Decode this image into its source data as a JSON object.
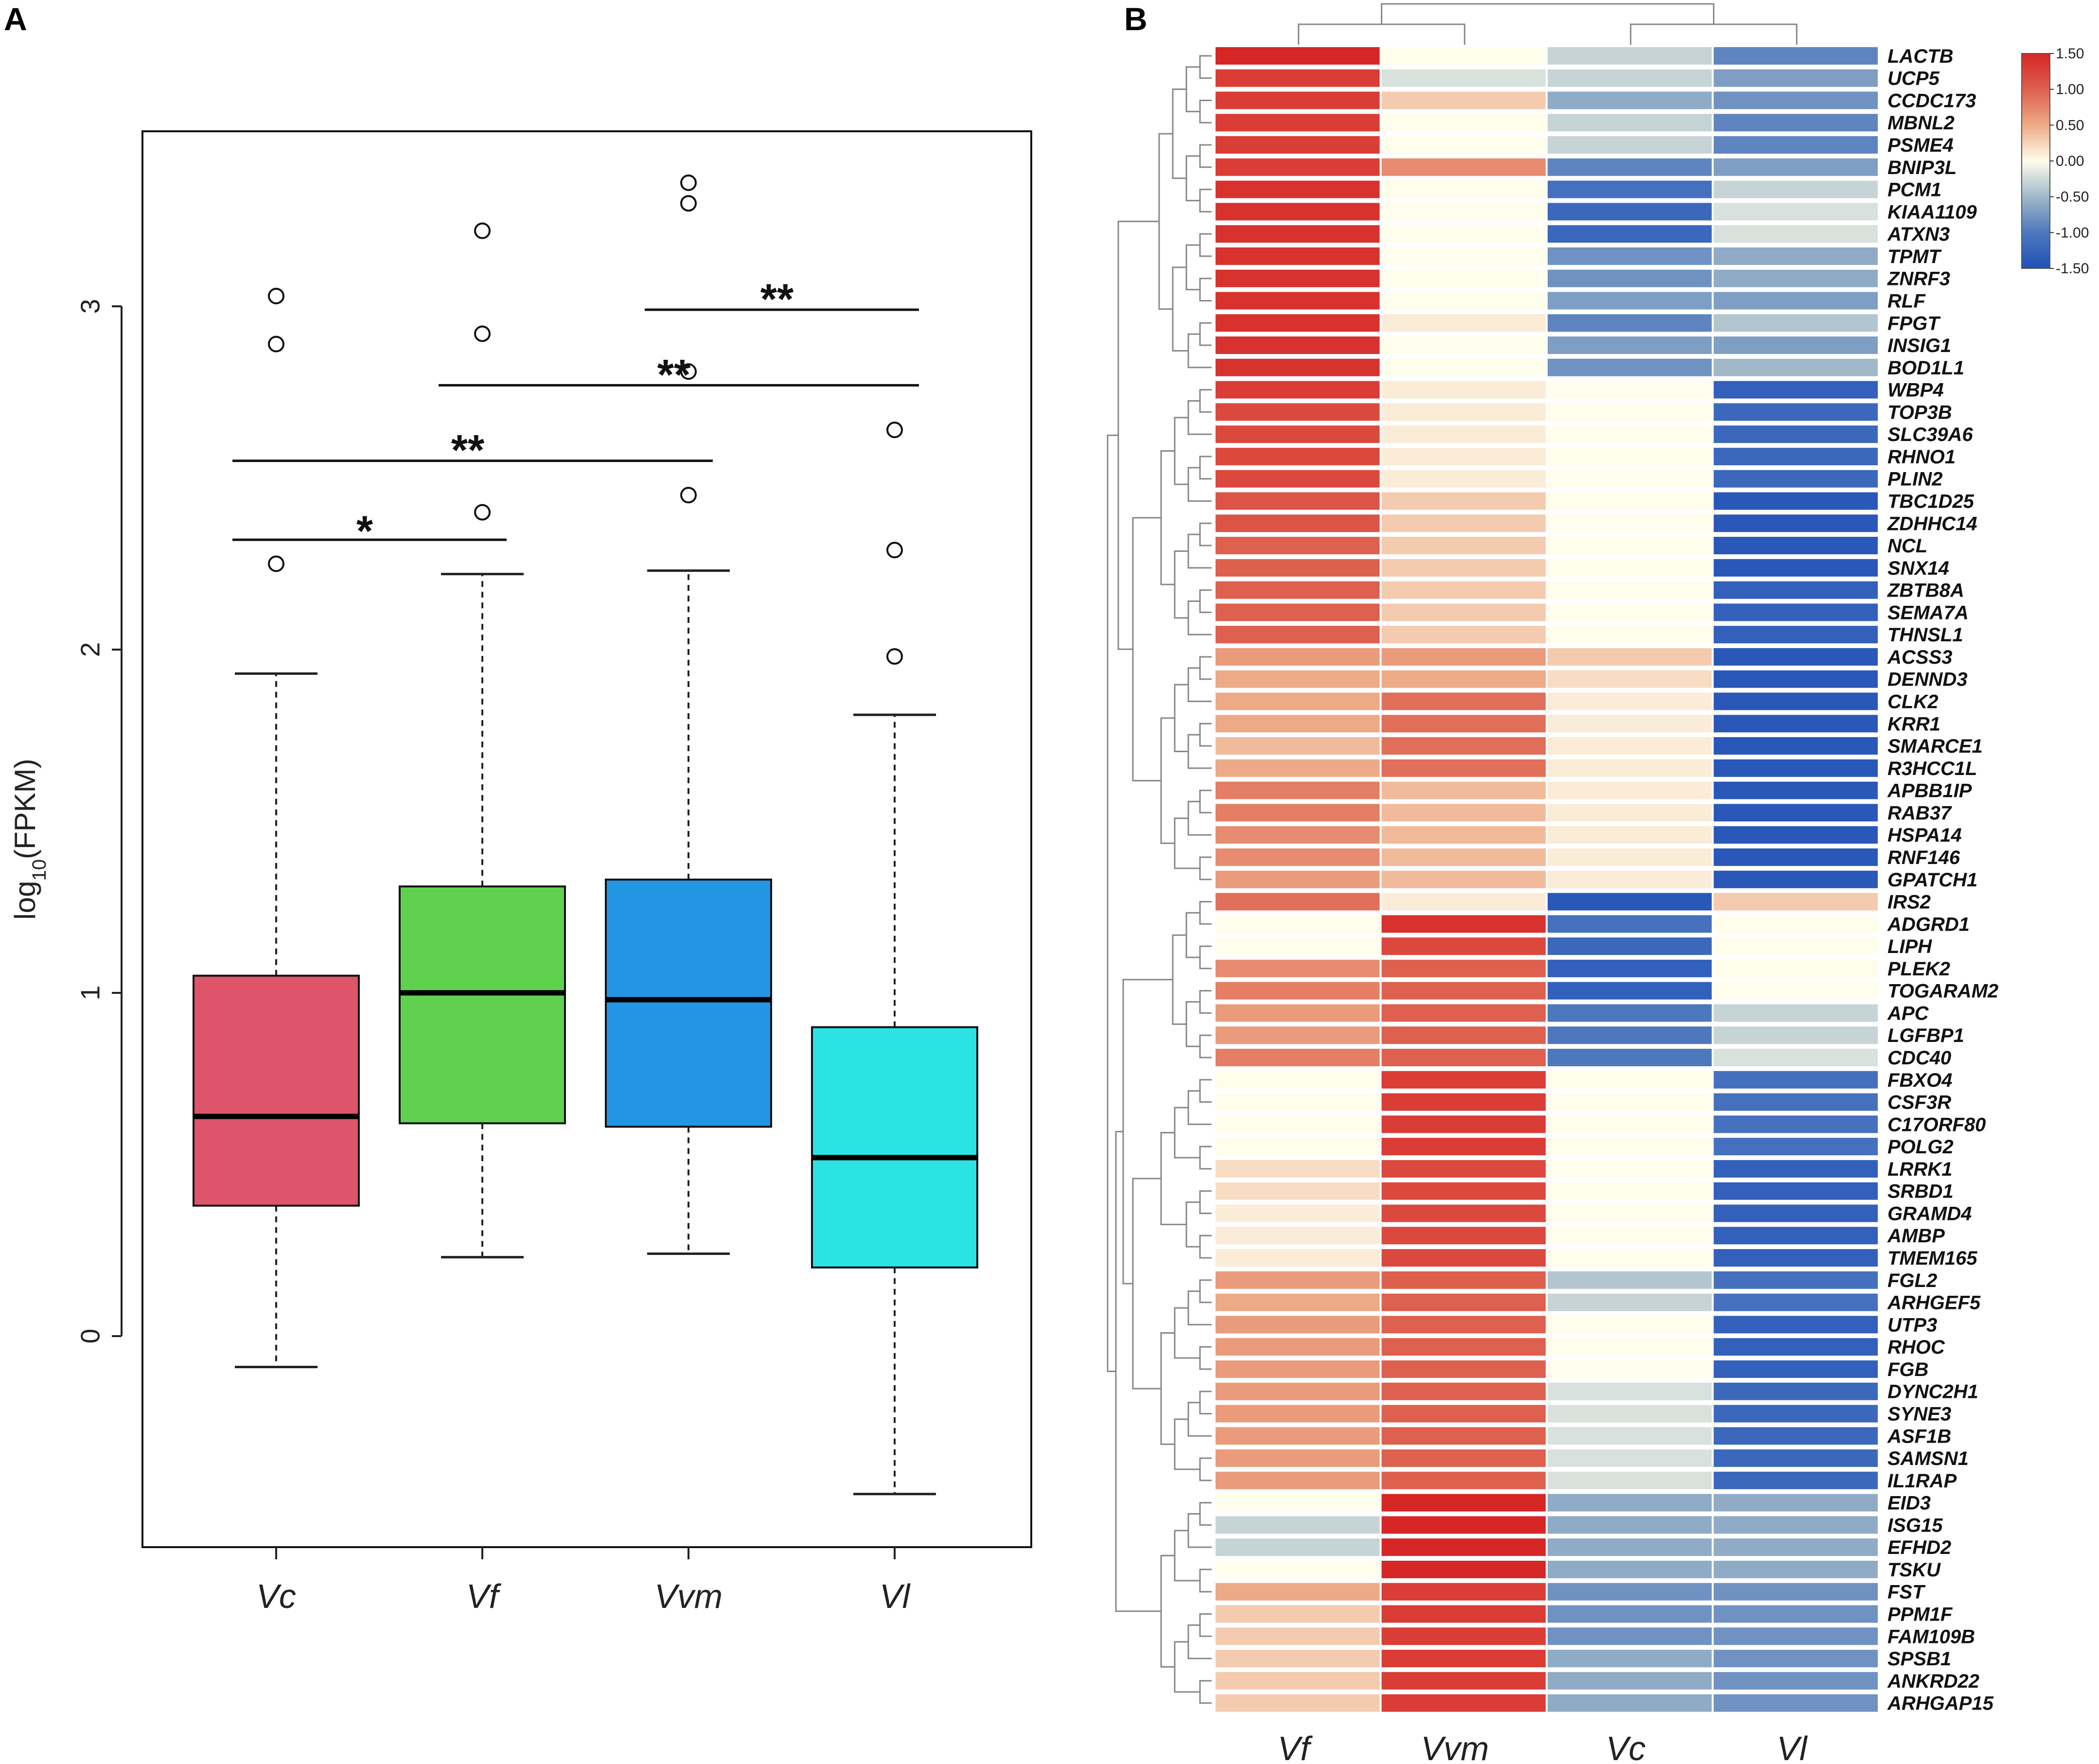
{
  "panel_labels": {
    "a": "A",
    "b": "B"
  },
  "chart_data": [
    {
      "type": "boxplot",
      "panel": "A",
      "ylabel": "log10(FPKM)",
      "ylabel_parts": {
        "log": "log",
        "sub": "10",
        "rest": "(FPKM)"
      },
      "ylim": [
        -0.6,
        3.5
      ],
      "yticks": [
        0,
        1,
        2,
        3
      ],
      "ytick_labels": [
        "0",
        "1",
        "2",
        "3"
      ],
      "categories": [
        "Vc",
        "Vf",
        "Vvm",
        "Vl"
      ],
      "colors": [
        "#dd546b",
        "#5fd14f",
        "#2295e3",
        "#2ce3e3"
      ],
      "boxes": [
        {
          "name": "Vc",
          "q1": 0.38,
          "median": 0.64,
          "q3": 1.05,
          "whisker_low": -0.09,
          "whisker_high": 1.93,
          "outliers": [
            2.25,
            2.89,
            3.03
          ]
        },
        {
          "name": "Vf",
          "q1": 0.62,
          "median": 1.0,
          "q3": 1.31,
          "whisker_low": 0.23,
          "whisker_high": 2.22,
          "outliers": [
            2.4,
            2.92,
            3.22
          ]
        },
        {
          "name": "Vvm",
          "q1": 0.61,
          "median": 0.98,
          "q3": 1.33,
          "whisker_low": 0.24,
          "whisker_high": 2.23,
          "outliers": [
            2.45,
            2.81,
            3.3,
            3.36
          ]
        },
        {
          "name": "Vl",
          "q1": 0.2,
          "median": 0.52,
          "q3": 0.9,
          "whisker_low": -0.46,
          "whisker_high": 1.81,
          "outliers": [
            1.98,
            2.29,
            2.64
          ]
        }
      ],
      "significance": [
        {
          "from": "Vc",
          "to": "Vf",
          "label": "*",
          "y": 2.32
        },
        {
          "from": "Vc",
          "to": "Vvm",
          "label": "**",
          "y": 2.55
        },
        {
          "from": "Vf",
          "to": "Vl",
          "label": "**",
          "y": 2.77
        },
        {
          "from": "Vvm",
          "to": "Vl",
          "label": "**",
          "y": 2.99
        }
      ]
    },
    {
      "type": "heatmap",
      "panel": "B",
      "columns": [
        "Vf",
        "Vvm",
        "Vc",
        "Vl"
      ],
      "colorbar": {
        "min": -1.5,
        "max": 1.5,
        "ticks": [
          "1.50",
          "1.00",
          "0.50",
          "0.00",
          "-0.50",
          "-1.00",
          "-1.50"
        ]
      },
      "genes": [
        "LACTB",
        "UCP5",
        "CCDC173",
        "MBNL2",
        "PSME4",
        "BNIP3L",
        "PCM1",
        "KIAA1109",
        "ATXN3",
        "TPMT",
        "ZNRF3",
        "RLF",
        "FPGT",
        "INSIG1",
        "BOD1L1",
        "WBP4",
        "TOP3B",
        "SLC39A6",
        "RHNO1",
        "PLIN2",
        "TBC1D25",
        "ZDHHC14",
        "NCL",
        "SNX14",
        "ZBTB8A",
        "SEMA7A",
        "THNSL1",
        "ACSS3",
        "DENND3",
        "CLK2",
        "KRR1",
        "SMARCE1",
        "R3HCC1L",
        "APBB1IP",
        "RAB37",
        "HSPA14",
        "RNF146",
        "GPATCH1",
        "IRS2",
        "ADGRD1",
        "LIPH",
        "PLEK2",
        "TOGARAM2",
        "APC",
        "LGFBP1",
        "CDC40",
        "FBXO4",
        "CSF3R",
        "C17ORF80",
        "POLG2",
        "LRRK1",
        "SRBD1",
        "GRAMD4",
        "AMBP",
        "TMEM165",
        "FGL2",
        "ARHGEF5",
        "UTP3",
        "RHOC",
        "FGB",
        "DYNC2H1",
        "SYNE3",
        "ASF1B",
        "SAMSN1",
        "IL1RAP",
        "EID3",
        "ISG15",
        "EFHD2",
        "TSKU",
        "FST",
        "PPM1F",
        "FAM109B",
        "SPSB1",
        "ANKRD22",
        "ARHGAP15"
      ],
      "values": [
        [
          1.5,
          0.0,
          -0.3,
          -0.9
        ],
        [
          1.3,
          -0.2,
          -0.3,
          -0.7
        ],
        [
          1.3,
          0.3,
          -0.6,
          -0.8
        ],
        [
          1.3,
          0.0,
          -0.3,
          -0.9
        ],
        [
          1.3,
          0.0,
          -0.3,
          -0.9
        ],
        [
          1.3,
          0.7,
          -0.9,
          -0.7
        ],
        [
          1.4,
          0.0,
          -1.1,
          -0.3
        ],
        [
          1.4,
          0.0,
          -1.2,
          -0.2
        ],
        [
          1.4,
          0.0,
          -1.2,
          -0.2
        ],
        [
          1.4,
          0.0,
          -0.8,
          -0.6
        ],
        [
          1.4,
          0.0,
          -0.8,
          -0.6
        ],
        [
          1.4,
          0.0,
          -0.7,
          -0.7
        ],
        [
          1.4,
          0.1,
          -0.9,
          -0.4
        ],
        [
          1.4,
          0.0,
          -0.7,
          -0.7
        ],
        [
          1.4,
          0.0,
          -0.8,
          -0.5
        ],
        [
          1.3,
          0.1,
          0.0,
          -1.3
        ],
        [
          1.2,
          0.1,
          0.0,
          -1.2
        ],
        [
          1.2,
          0.1,
          0.0,
          -1.2
        ],
        [
          1.2,
          0.1,
          0.0,
          -1.2
        ],
        [
          1.2,
          0.1,
          0.0,
          -1.2
        ],
        [
          1.1,
          0.3,
          0.0,
          -1.4
        ],
        [
          1.1,
          0.3,
          0.0,
          -1.4
        ],
        [
          1.0,
          0.3,
          0.0,
          -1.4
        ],
        [
          1.0,
          0.3,
          0.0,
          -1.4
        ],
        [
          1.0,
          0.3,
          0.0,
          -1.3
        ],
        [
          1.0,
          0.3,
          0.0,
          -1.3
        ],
        [
          1.0,
          0.3,
          0.0,
          -1.3
        ],
        [
          0.6,
          0.6,
          0.3,
          -1.4
        ],
        [
          0.5,
          0.5,
          0.2,
          -1.4
        ],
        [
          0.5,
          0.9,
          0.1,
          -1.4
        ],
        [
          0.5,
          0.9,
          0.1,
          -1.4
        ],
        [
          0.4,
          0.9,
          0.1,
          -1.4
        ],
        [
          0.5,
          0.9,
          0.1,
          -1.4
        ],
        [
          0.8,
          0.4,
          0.1,
          -1.4
        ],
        [
          0.8,
          0.4,
          0.1,
          -1.4
        ],
        [
          0.7,
          0.4,
          0.1,
          -1.4
        ],
        [
          0.7,
          0.4,
          0.1,
          -1.4
        ],
        [
          0.6,
          0.4,
          0.1,
          -1.4
        ],
        [
          0.9,
          0.1,
          -1.4,
          0.3
        ],
        [
          0.0,
          1.4,
          -1.1,
          0.0
        ],
        [
          0.0,
          1.2,
          -1.2,
          0.0
        ],
        [
          0.7,
          1.0,
          -1.3,
          0.0
        ],
        [
          0.8,
          1.0,
          -1.3,
          0.0
        ],
        [
          0.6,
          1.0,
          -1.0,
          -0.3
        ],
        [
          0.6,
          1.0,
          -1.0,
          -0.3
        ],
        [
          0.8,
          1.0,
          -1.0,
          -0.2
        ],
        [
          0.0,
          1.3,
          0.0,
          -1.1
        ],
        [
          0.0,
          1.3,
          0.0,
          -1.1
        ],
        [
          0.0,
          1.3,
          0.0,
          -1.1
        ],
        [
          0.0,
          1.3,
          0.0,
          -1.1
        ],
        [
          0.2,
          1.2,
          0.0,
          -1.3
        ],
        [
          0.2,
          1.2,
          0.0,
          -1.3
        ],
        [
          0.1,
          1.2,
          0.0,
          -1.3
        ],
        [
          0.1,
          1.2,
          0.0,
          -1.3
        ],
        [
          0.1,
          1.2,
          0.0,
          -1.3
        ],
        [
          0.6,
          1.0,
          -0.4,
          -1.1
        ],
        [
          0.5,
          1.0,
          -0.3,
          -1.1
        ],
        [
          0.6,
          1.0,
          0.0,
          -1.3
        ],
        [
          0.6,
          1.0,
          0.0,
          -1.3
        ],
        [
          0.6,
          1.0,
          0.0,
          -1.3
        ],
        [
          0.6,
          1.0,
          -0.2,
          -1.2
        ],
        [
          0.6,
          1.0,
          -0.2,
          -1.2
        ],
        [
          0.6,
          1.0,
          -0.2,
          -1.2
        ],
        [
          0.6,
          1.0,
          -0.2,
          -1.2
        ],
        [
          0.6,
          1.0,
          -0.2,
          -1.2
        ],
        [
          0.0,
          1.5,
          -0.6,
          -0.6
        ],
        [
          -0.3,
          1.5,
          -0.6,
          -0.6
        ],
        [
          -0.3,
          1.5,
          -0.6,
          -0.6
        ],
        [
          0.0,
          1.5,
          -0.6,
          -0.6
        ],
        [
          0.5,
          1.3,
          -0.8,
          -0.8
        ],
        [
          0.3,
          1.3,
          -0.8,
          -0.8
        ],
        [
          0.3,
          1.3,
          -0.8,
          -0.8
        ],
        [
          0.3,
          1.3,
          -0.6,
          -0.8
        ],
        [
          0.3,
          1.3,
          -0.6,
          -0.8
        ],
        [
          0.3,
          1.3,
          -0.6,
          -0.8
        ]
      ]
    }
  ]
}
